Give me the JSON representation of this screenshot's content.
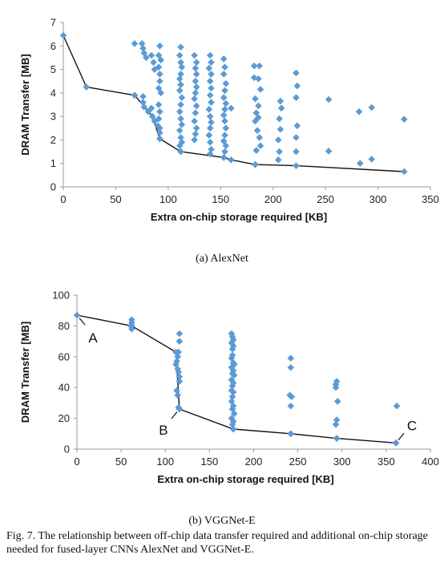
{
  "chart_data": [
    {
      "type": "scatter",
      "caption": "(a) AlexNet",
      "xlabel": "Extra on-chip storage required [KB]",
      "ylabel": "DRAM Transfer [MB]",
      "xlim": [
        0,
        350
      ],
      "ylim": [
        0,
        7
      ],
      "xticks": [
        0,
        50,
        100,
        150,
        200,
        250,
        300,
        350
      ],
      "yticks": [
        0,
        1,
        2,
        3,
        4,
        5,
        6,
        7
      ],
      "marker_color": "#5b9bd5",
      "points": [
        [
          68,
          6.1
        ],
        [
          75,
          6.1
        ],
        [
          76,
          5.9
        ],
        [
          77,
          5.7
        ],
        [
          79,
          5.5
        ],
        [
          84,
          5.6
        ],
        [
          86,
          5.3
        ],
        [
          87,
          5.0
        ],
        [
          92,
          6.0
        ],
        [
          91,
          5.6
        ],
        [
          93,
          5.4
        ],
        [
          91,
          5.1
        ],
        [
          92,
          4.8
        ],
        [
          92,
          4.5
        ],
        [
          91,
          4.2
        ],
        [
          93,
          4.0
        ],
        [
          68,
          3.9
        ],
        [
          76,
          3.85
        ],
        [
          76,
          3.6
        ],
        [
          77,
          3.4
        ],
        [
          81,
          3.2
        ],
        [
          85,
          3.0
        ],
        [
          84,
          3.35
        ],
        [
          87,
          2.8
        ],
        [
          90,
          2.6
        ],
        [
          91,
          3.5
        ],
        [
          92,
          3.2
        ],
        [
          91,
          2.9
        ],
        [
          92,
          2.5
        ],
        [
          92,
          2.3
        ],
        [
          92,
          2.05
        ],
        [
          112,
          5.95
        ],
        [
          111,
          5.6
        ],
        [
          112,
          5.3
        ],
        [
          113,
          5.1
        ],
        [
          112,
          4.8
        ],
        [
          111,
          4.6
        ],
        [
          112,
          4.35
        ],
        [
          111,
          4.1
        ],
        [
          113,
          3.8
        ],
        [
          112,
          3.5
        ],
        [
          111,
          3.2
        ],
        [
          112,
          2.9
        ],
        [
          113,
          2.65
        ],
        [
          111,
          2.4
        ],
        [
          112,
          2.1
        ],
        [
          113,
          1.9
        ],
        [
          111,
          1.75
        ],
        [
          112,
          1.5
        ],
        [
          125,
          5.6
        ],
        [
          127,
          5.3
        ],
        [
          126,
          5.05
        ],
        [
          127,
          4.8
        ],
        [
          126,
          4.5
        ],
        [
          127,
          4.25
        ],
        [
          126,
          4.0
        ],
        [
          125,
          3.75
        ],
        [
          127,
          3.45
        ],
        [
          126,
          3.15
        ],
        [
          125,
          2.8
        ],
        [
          127,
          2.5
        ],
        [
          126,
          2.25
        ],
        [
          125,
          2.0
        ],
        [
          140,
          5.6
        ],
        [
          141,
          5.3
        ],
        [
          139,
          5.05
        ],
        [
          141,
          4.8
        ],
        [
          140,
          4.5
        ],
        [
          141,
          4.2
        ],
        [
          140,
          3.9
        ],
        [
          141,
          3.6
        ],
        [
          139,
          3.3
        ],
        [
          140,
          3.0
        ],
        [
          141,
          2.75
        ],
        [
          140,
          2.5
        ],
        [
          139,
          2.2
        ],
        [
          140,
          1.9
        ],
        [
          141,
          1.6
        ],
        [
          140,
          1.4
        ],
        [
          153,
          5.45
        ],
        [
          154,
          5.1
        ],
        [
          153,
          4.8
        ],
        [
          155,
          4.4
        ],
        [
          154,
          4.1
        ],
        [
          153,
          3.8
        ],
        [
          155,
          3.55
        ],
        [
          154,
          3.3
        ],
        [
          153,
          3.05
        ],
        [
          154,
          2.8
        ],
        [
          155,
          2.5
        ],
        [
          154,
          2.2
        ],
        [
          153,
          1.95
        ],
        [
          155,
          1.75
        ],
        [
          154,
          1.5
        ],
        [
          160,
          3.35
        ],
        [
          153,
          1.25
        ],
        [
          182,
          5.15
        ],
        [
          187,
          5.15
        ],
        [
          182,
          4.65
        ],
        [
          186,
          4.6
        ],
        [
          188,
          4.15
        ],
        [
          183,
          3.75
        ],
        [
          186,
          3.45
        ],
        [
          184,
          3.15
        ],
        [
          186,
          2.95
        ],
        [
          183,
          2.8
        ],
        [
          185,
          2.4
        ],
        [
          187,
          2.1
        ],
        [
          188,
          1.75
        ],
        [
          184,
          1.55
        ],
        [
          183,
          0.95
        ],
        [
          207,
          3.65
        ],
        [
          208,
          3.35
        ],
        [
          206,
          2.9
        ],
        [
          207,
          2.45
        ],
        [
          205,
          2.0
        ],
        [
          206,
          1.5
        ],
        [
          205,
          1.15
        ],
        [
          222,
          4.85
        ],
        [
          223,
          4.3
        ],
        [
          222,
          3.8
        ],
        [
          223,
          2.6
        ],
        [
          222,
          2.1
        ],
        [
          222,
          1.5
        ],
        [
          253,
          3.72
        ],
        [
          253,
          1.52
        ],
        [
          282,
          3.2
        ],
        [
          283,
          1.0
        ],
        [
          294,
          3.38
        ],
        [
          294,
          1.18
        ],
        [
          325,
          2.88
        ]
      ],
      "frontier": [
        [
          0,
          6.45
        ],
        [
          22,
          4.25
        ],
        [
          68,
          3.9
        ],
        [
          85,
          3.0
        ],
        [
          92,
          2.05
        ],
        [
          112,
          1.5
        ],
        [
          153,
          1.25
        ],
        [
          160,
          1.15
        ],
        [
          183,
          0.95
        ],
        [
          222,
          0.9
        ],
        [
          325,
          0.65
        ]
      ]
    },
    {
      "type": "scatter",
      "caption": "(b) VGGNet-E",
      "xlabel": "Extra on-chip storage required [KB]",
      "ylabel": "DRAM Transfer [MB]",
      "xlim": [
        0,
        400
      ],
      "ylim": [
        0,
        100
      ],
      "xticks": [
        0,
        50,
        100,
        150,
        200,
        250,
        300,
        350,
        400
      ],
      "yticks": [
        0,
        20,
        40,
        60,
        80,
        100
      ],
      "marker_color": "#5b9bd5",
      "points": [
        [
          62,
          84
        ],
        [
          62,
          82
        ],
        [
          61,
          80
        ],
        [
          62,
          78
        ],
        [
          116,
          75
        ],
        [
          116,
          70
        ],
        [
          115,
          63
        ],
        [
          114,
          60
        ],
        [
          113,
          57
        ],
        [
          112,
          55
        ],
        [
          114,
          52
        ],
        [
          115,
          50
        ],
        [
          116,
          47
        ],
        [
          116,
          44
        ],
        [
          113,
          38
        ],
        [
          114,
          35
        ],
        [
          115,
          27
        ],
        [
          175,
          75
        ],
        [
          176,
          73
        ],
        [
          177,
          71
        ],
        [
          175,
          69
        ],
        [
          177,
          67
        ],
        [
          176,
          65
        ],
        [
          176,
          61
        ],
        [
          175,
          59
        ],
        [
          177,
          56
        ],
        [
          178,
          55
        ],
        [
          175,
          53
        ],
        [
          177,
          51
        ],
        [
          176,
          49
        ],
        [
          178,
          48
        ],
        [
          175,
          45
        ],
        [
          177,
          43
        ],
        [
          176,
          41
        ],
        [
          175,
          38
        ],
        [
          177,
          37
        ],
        [
          176,
          34
        ],
        [
          175,
          31
        ],
        [
          177,
          28
        ],
        [
          176,
          26
        ],
        [
          178,
          23
        ],
        [
          175,
          20
        ],
        [
          177,
          18
        ],
        [
          176,
          16
        ],
        [
          177,
          13
        ],
        [
          242,
          59
        ],
        [
          242,
          53
        ],
        [
          241,
          35
        ],
        [
          243,
          34
        ],
        [
          242,
          28
        ],
        [
          242,
          10
        ],
        [
          294,
          44
        ],
        [
          293,
          42
        ],
        [
          293,
          40
        ],
        [
          295,
          31
        ],
        [
          294,
          19
        ],
        [
          293,
          16
        ],
        [
          294,
          7
        ],
        [
          362,
          28
        ],
        [
          361,
          4
        ]
      ],
      "frontier": [
        [
          0,
          87
        ],
        [
          62,
          80
        ],
        [
          112,
          63
        ],
        [
          116,
          26
        ],
        [
          177,
          13
        ],
        [
          242,
          10
        ],
        [
          294,
          7
        ],
        [
          361,
          4
        ]
      ],
      "annotations": [
        {
          "label": "A",
          "x": 0,
          "y": 87
        },
        {
          "label": "B",
          "x": 116,
          "y": 26
        },
        {
          "label": "C",
          "x": 361,
          "y": 4
        }
      ]
    }
  ],
  "figure_caption": "Fig. 7.  The relationship between off-chip data transfer required and additional on-chip storage needed for fused-layer CNNs AlexNet and VGGNet-E."
}
